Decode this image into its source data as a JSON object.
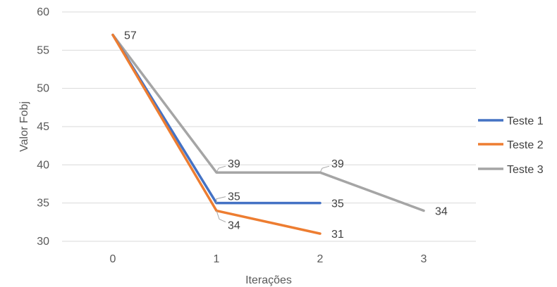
{
  "chart_data": {
    "type": "line",
    "xlabel": "Iterações",
    "ylabel": "Valor Fobj",
    "x_ticks": [
      "0",
      "1",
      "2",
      "3"
    ],
    "ylim": [
      30,
      60
    ],
    "y_ticks": [
      "30",
      "35",
      "40",
      "45",
      "50",
      "55",
      "60"
    ],
    "grid": true,
    "legend_position": "right",
    "series": [
      {
        "name": "Teste 1",
        "color": "#4472C4",
        "x": [
          0,
          1,
          2
        ],
        "values": [
          57,
          35,
          35
        ]
      },
      {
        "name": "Teste 2",
        "color": "#ED7D31",
        "x": [
          0,
          1,
          2
        ],
        "values": [
          57,
          34,
          31
        ]
      },
      {
        "name": "Teste 3",
        "color": "#A5A5A5",
        "x": [
          0,
          1,
          2,
          3
        ],
        "values": [
          57,
          39,
          39,
          34
        ]
      }
    ],
    "data_labels": [
      {
        "text": "57",
        "x": 0,
        "y": 57
      },
      {
        "text": "39",
        "x": 1,
        "y": 39
      },
      {
        "text": "35",
        "x": 1,
        "y": 35
      },
      {
        "text": "34",
        "x": 1,
        "y": 34
      },
      {
        "text": "39",
        "x": 2,
        "y": 39
      },
      {
        "text": "35",
        "x": 2,
        "y": 35
      },
      {
        "text": "31",
        "x": 2,
        "y": 31
      },
      {
        "text": "34",
        "x": 3,
        "y": 34
      }
    ]
  }
}
